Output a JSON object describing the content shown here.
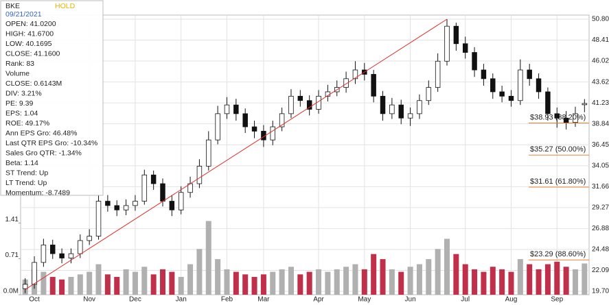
{
  "chart_data": {
    "type": "candlestick",
    "info_panel": {
      "symbol": "BKE",
      "rating": "HOLD",
      "date": "09/21/2021",
      "lines": [
        "OPEN: 41.0200",
        "HIGH: 41.6700",
        "LOW: 40.1695",
        "CLOSE: 41.1600",
        "Rank: 83",
        "Volume",
        "CLOSE: 0.6143M",
        "DIV: 3.21%",
        "PE: 9.39",
        "EPS: 1.04",
        "ROE: 49.17%",
        "Ann EPS Gro: 46.48%",
        "Last QTR EPS Gro: -10.34%",
        "Sales Gro QTR: -1.34%",
        "Beta: 1.14",
        "ST Trend: Up",
        "LT Trend: Up",
        "Momentum: -8.7489"
      ]
    },
    "categories": [
      null,
      "Oct",
      null,
      null,
      null,
      null,
      null,
      "Nov",
      null,
      null,
      null,
      null,
      "Dec",
      null,
      null,
      null,
      null,
      "Jan",
      null,
      null,
      null,
      null,
      "Feb",
      null,
      null,
      null,
      "Mar",
      null,
      null,
      null,
      null,
      null,
      "Apr",
      null,
      null,
      null,
      null,
      "May",
      null,
      null,
      null,
      null,
      "Jun",
      null,
      null,
      null,
      null,
      null,
      "Jul",
      null,
      null,
      null,
      null,
      "Aug",
      null,
      null,
      null,
      null,
      "Sep",
      null,
      null,
      null
    ],
    "open": [
      20.0,
      20.5,
      23,
      25,
      24,
      23.5,
      24,
      25.5,
      26,
      30,
      29.5,
      29,
      29.5,
      30,
      33,
      32,
      30,
      29,
      31,
      32,
      34,
      37,
      40,
      41,
      40,
      38.5,
      38,
      37,
      38.5,
      40,
      42,
      41.5,
      40.5,
      42,
      42.5,
      43,
      44,
      45,
      44.5,
      42,
      40,
      41,
      39.5,
      40,
      41.5,
      43,
      46,
      50,
      48,
      47,
      45,
      44,
      42.5,
      42,
      41.5,
      45,
      44,
      42.5,
      40,
      39.5,
      39,
      41.02
    ],
    "high": [
      21.2,
      23.7,
      25.7,
      25.6,
      24.6,
      24.6,
      26.2,
      26.8,
      30.8,
      30.7,
      30.1,
      30.2,
      30.7,
      33.6,
      33.5,
      32.6,
      30.7,
      31.7,
      32.8,
      34.8,
      38,
      40.9,
      41.9,
      41.7,
      40.6,
      39.2,
      38.7,
      39.2,
      40.7,
      42.8,
      42.7,
      42.1,
      42.7,
      43.3,
      43.8,
      44.8,
      46,
      45.8,
      45,
      42.6,
      41.8,
      41.6,
      40.7,
      42.2,
      43.8,
      46.9,
      50.8,
      50.4,
      48.8,
      47.6,
      45.7,
      44.6,
      43.2,
      42.7,
      46.2,
      45.7,
      44.6,
      43,
      40.7,
      40.3,
      40.8,
      41.67
    ],
    "low": [
      19.5,
      20.0,
      22.5,
      23.4,
      22.9,
      22.9,
      23.5,
      25,
      25.6,
      28.8,
      28.3,
      28.4,
      28.9,
      29.6,
      31.3,
      29.4,
      28.3,
      28.5,
      30.4,
      31.5,
      33.5,
      36.5,
      39.4,
      39.2,
      37.8,
      37.2,
      36.2,
      36.4,
      38,
      39.5,
      40.8,
      39.8,
      40,
      41.4,
      42,
      42.4,
      43.4,
      43.8,
      41.3,
      39.2,
      39.4,
      38.8,
      38.6,
      39.4,
      41,
      42.5,
      45.5,
      47.2,
      46.3,
      44.2,
      43.2,
      41.7,
      41.3,
      40.8,
      41,
      43.2,
      41.7,
      39.2,
      38.4,
      38.2,
      38.5,
      40.1695
    ],
    "close": [
      20.5,
      23,
      25,
      24,
      23.5,
      24,
      25.5,
      26,
      30,
      29.5,
      29,
      29.5,
      30,
      33,
      32,
      30,
      29,
      31,
      32,
      34,
      37,
      40,
      41,
      40,
      38.5,
      38,
      37,
      38.5,
      40,
      42,
      41.5,
      40.5,
      42,
      42.5,
      43,
      44,
      45,
      44.5,
      42,
      40,
      41,
      39.5,
      40,
      41.5,
      43,
      46,
      50,
      48,
      47,
      45,
      44,
      42.5,
      42,
      41.5,
      45,
      44,
      42.5,
      40,
      39.5,
      39,
      40,
      41.16
    ],
    "volume": [
      0.3,
      0.5,
      0.45,
      0.35,
      0.3,
      0.35,
      0.4,
      0.45,
      0.6,
      0.4,
      0.35,
      0.5,
      0.45,
      0.55,
      0.4,
      0.5,
      0.45,
      0.35,
      0.6,
      0.9,
      1.45,
      0.7,
      0.5,
      0.45,
      0.4,
      0.35,
      0.4,
      0.45,
      0.5,
      0.55,
      0.4,
      0.45,
      0.5,
      0.45,
      0.5,
      0.55,
      0.6,
      0.5,
      0.8,
      0.7,
      0.5,
      0.45,
      0.55,
      0.6,
      0.7,
      0.9,
      1.1,
      0.8,
      0.6,
      0.5,
      0.45,
      0.55,
      0.5,
      0.45,
      0.7,
      0.6,
      0.5,
      0.6,
      0.65,
      0.55,
      0.5,
      0.6143
    ],
    "up_volume_color": "#b0b0b0",
    "down_volume_color": "#c0304a",
    "ylim": [
      19.31,
      51.27
    ],
    "yticks": [
      {
        "value": 50.8,
        "label": "50.80"
      },
      48.41,
      46.02,
      43.62,
      41.23,
      38.84,
      36.45,
      34.05,
      31.66,
      29.27,
      26.88,
      24.48,
      22.09,
      {
        "value": 19.7,
        "label": "19.70"
      }
    ],
    "y2lim": [
      0,
      5.5
    ],
    "y2ticks": [
      {
        "value": 0,
        "label": "0.0M"
      },
      0.71,
      1.41
    ],
    "grid": true,
    "trend_line": {
      "x": [
        0,
        46
      ],
      "values": [
        19.9,
        50.8
      ],
      "color": "#e03030"
    },
    "fib_levels": {
      "color": "#f08030",
      "levels": [
        {
          "value": 38.93,
          "label": "$38.93 (38.20%)"
        },
        {
          "value": 35.27,
          "label": "$35.27 (50.00%)"
        },
        {
          "value": 31.61,
          "label": "$31.61 (61.80%)"
        },
        {
          "value": 23.29,
          "label": "$23.29 (88.60%)"
        }
      ]
    }
  }
}
